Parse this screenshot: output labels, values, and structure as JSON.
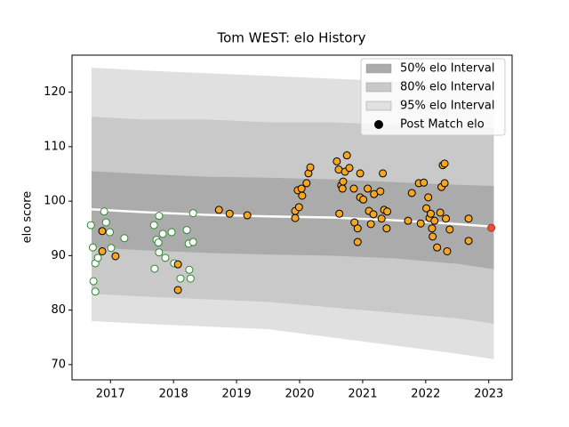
{
  "chart_data": {
    "type": "scatter",
    "title": "Tom WEST: elo History",
    "y_label": "elo score",
    "xlim": [
      2016.39,
      2023.37
    ],
    "ylim": [
      67.2,
      126.8
    ],
    "xticks": [
      2017,
      2018,
      2019,
      2020,
      2021,
      2022,
      2023
    ],
    "yticks": [
      70,
      80,
      90,
      100,
      110,
      120
    ],
    "legend": "upper right",
    "bands": [
      {
        "name": "95% elo Interval",
        "color": "#e0e0e0",
        "x": [
          2016.7,
          2017.5,
          2018.5,
          2019.5,
          2020.5,
          2021.5,
          2022.5,
          2023.08
        ],
        "upper": [
          124.5,
          124,
          123.5,
          123,
          122.5,
          122,
          121,
          120.5
        ],
        "lower": [
          78,
          77.5,
          77,
          76.5,
          75,
          73.5,
          72,
          71
        ]
      },
      {
        "name": "80% elo Interval",
        "color": "#c9c9c9",
        "x": [
          2016.7,
          2017.5,
          2018.5,
          2019.5,
          2020.5,
          2021.5,
          2022.5,
          2023.08
        ],
        "upper": [
          115.5,
          115,
          115,
          114.5,
          114.5,
          114,
          113.5,
          113.5
        ],
        "lower": [
          83,
          82.5,
          82,
          81.5,
          80.5,
          79.5,
          78.5,
          77.5
        ]
      },
      {
        "name": "50% elo Interval",
        "color": "#ababab",
        "x": [
          2016.7,
          2017.5,
          2018.5,
          2019.5,
          2020.5,
          2021.5,
          2022.5,
          2023.08
        ],
        "upper": [
          105.5,
          105,
          104.5,
          104.3,
          104,
          103.5,
          103,
          102.8
        ],
        "lower": [
          91.5,
          91,
          90.5,
          90.2,
          90,
          89.5,
          88.5,
          87.5
        ]
      }
    ],
    "line": {
      "color": "#ffffff",
      "x": [
        2016.7,
        2017.5,
        2018.5,
        2019.5,
        2020.5,
        2021.5,
        2022.5,
        2023.08
      ],
      "values": [
        98.5,
        98,
        97.5,
        97.2,
        97,
        96.5,
        95.8,
        95.3
      ]
    },
    "legend_marker": {
      "name": "Post Match elo",
      "color": "#000000"
    },
    "point_groups": [
      {
        "face": "#ffffff",
        "edge": "#2e8b2e",
        "x": [
          2016.69,
          2016.72,
          2016.73,
          2016.76,
          2016.76,
          2016.8,
          2016.9,
          2016.93,
          2016.99,
          2017.01,
          2017.22,
          2017.69,
          2017.7,
          2017.73,
          2017.76,
          2017.77,
          2017.77,
          2017.83,
          2017.87,
          2017.97,
          2018.01,
          2018.11,
          2018.21,
          2018.24,
          2018.25,
          2018.27,
          2018.31,
          2018.31
        ],
        "values": [
          95.6,
          91.5,
          85.3,
          88.6,
          83.4,
          89.6,
          98.1,
          96.1,
          94.3,
          91.4,
          93.2,
          95.6,
          87.6,
          92.9,
          92.4,
          97.3,
          90.6,
          94.0,
          89.6,
          94.3,
          88.6,
          85.8,
          94.7,
          92.2,
          87.4,
          85.8,
          92.5,
          97.8
        ]
      },
      {
        "face": "#f5a623",
        "edge": "#000000",
        "x": [
          2016.87,
          2016.87,
          2017.08,
          2018.07,
          2018.07,
          2018.72,
          2018.89,
          2019.17,
          2019.93,
          2019.93,
          2019.97,
          2019.99,
          2020.03,
          2020.04,
          2020.11,
          2020.14,
          2020.17,
          2020.59,
          2020.62,
          2020.63,
          2020.66,
          2020.68,
          2020.69,
          2020.72,
          2020.75,
          2020.79,
          2020.86,
          2020.87,
          2020.92,
          2020.92,
          2020.96,
          2020.96,
          2021.01,
          2021.08,
          2021.1,
          2021.13,
          2021.17,
          2021.18,
          2021.28,
          2021.3,
          2021.32,
          2021.34,
          2021.38,
          2021.39,
          2021.72,
          2021.78,
          2021.89,
          2021.92,
          2021.97,
          2022.01,
          2022.04,
          2022.06,
          2022.08,
          2022.1,
          2022.11,
          2022.14,
          2022.18,
          2022.23,
          2022.25,
          2022.27,
          2022.3,
          2022.3,
          2022.32,
          2022.34,
          2022.38,
          2022.68,
          2022.68
        ],
        "values": [
          94.5,
          90.8,
          89.9,
          88.4,
          83.7,
          98.4,
          97.7,
          97.4,
          96.9,
          98.2,
          102.0,
          98.9,
          102.3,
          101.0,
          103.3,
          105.1,
          106.2,
          107.3,
          105.8,
          97.7,
          102.9,
          102.3,
          103.6,
          105.4,
          108.4,
          106.1,
          102.3,
          96.1,
          92.5,
          95.0,
          105.1,
          100.7,
          100.3,
          102.3,
          98.2,
          95.8,
          97.6,
          101.3,
          101.8,
          96.8,
          105.1,
          98.4,
          95.0,
          98.1,
          96.4,
          101.5,
          103.3,
          95.9,
          103.4,
          98.7,
          100.7,
          96.9,
          97.7,
          95.0,
          93.5,
          96.4,
          91.5,
          97.9,
          102.6,
          106.6,
          106.9,
          103.3,
          96.8,
          90.8,
          94.8,
          96.8,
          92.7
        ]
      },
      {
        "face": "#e8503a",
        "edge": "#b03020",
        "x": [
          2023.04
        ],
        "values": [
          95.1
        ]
      }
    ]
  }
}
